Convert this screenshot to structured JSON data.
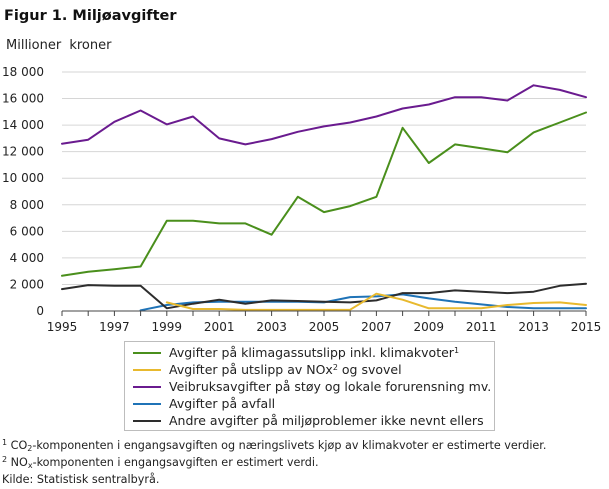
{
  "figure": {
    "title": "Figur 1. Miljøavgifter",
    "y_unit": "Millioner kroner"
  },
  "chart_data": {
    "type": "line",
    "title": "Figur 1. Miljøavgifter",
    "ylabel": "Millioner kroner",
    "xlabel": "",
    "x": [
      1995,
      1996,
      1997,
      1998,
      1999,
      2000,
      2001,
      2002,
      2003,
      2004,
      2005,
      2006,
      2007,
      2008,
      2009,
      2010,
      2011,
      2012,
      2013,
      2014,
      2015
    ],
    "x_ticks": [
      1995,
      1997,
      1999,
      2001,
      2003,
      2005,
      2007,
      2009,
      2011,
      2013,
      2015
    ],
    "xlim": [
      1995,
      2015
    ],
    "ylim": [
      0,
      18000
    ],
    "y_ticks": [
      0,
      2000,
      4000,
      6000,
      8000,
      10000,
      12000,
      14000,
      16000,
      18000
    ],
    "y_tick_labels": [
      "0",
      "2 000",
      "4 000",
      "6 000",
      "8 000",
      "10 000",
      "12 000",
      "14 000",
      "16 000",
      "18 000"
    ],
    "grid": "horizontal",
    "legend_position": "bottom",
    "series": [
      {
        "name": "Avgifter på klimagassutslipp inkl. klimakvoter",
        "legend_text": "Avgifter på klimagassutslipp  inkl. klimakvoter",
        "legend_sup": "1",
        "color": "#4a8f1c",
        "values": [
          2650,
          2950,
          3150,
          3350,
          6800,
          6800,
          6600,
          6600,
          5750,
          8600,
          7450,
          7900,
          8600,
          13800,
          11150,
          12550,
          12250,
          11950,
          13450,
          14200,
          14950
        ]
      },
      {
        "name": "Avgifter på utslipp av NOx og svovel",
        "legend_text": "Avgifter på utslipp  av NOx",
        "legend_sup": "2",
        "legend_text_after": " og svovel",
        "color": "#e8b92e",
        "values": [
          null,
          null,
          null,
          null,
          650,
          150,
          150,
          80,
          80,
          80,
          80,
          100,
          1300,
          850,
          200,
          200,
          200,
          450,
          600,
          650,
          450
        ]
      },
      {
        "name": "Veibruksavgifter på støy og lokale forurensning mv.",
        "legend_text": "Veibruksavgifter på støy og lokale forurensning mv.",
        "color": "#6a1b8f",
        "values": [
          12600,
          12900,
          14250,
          15100,
          14050,
          14650,
          13000,
          12550,
          12950,
          13500,
          13900,
          14200,
          14650,
          15250,
          15550,
          16100,
          16100,
          15850,
          17000,
          16650,
          16100
        ]
      },
      {
        "name": "Avgifter på avfall",
        "legend_text": "Avgifter på avfall",
        "color": "#1f73b7",
        "values": [
          null,
          null,
          null,
          50,
          450,
          650,
          700,
          700,
          700,
          700,
          650,
          1050,
          1100,
          1250,
          950,
          700,
          500,
          300,
          200,
          200,
          200
        ]
      },
      {
        "name": "Andre avgifter på miljøproblemer ikke nevnt ellers",
        "legend_text": "Andre avgifter på miljøproblemer ikke nevnt ellers",
        "color": "#2d2d2d",
        "values": [
          1650,
          1950,
          1900,
          1900,
          200,
          550,
          850,
          550,
          800,
          750,
          700,
          650,
          800,
          1350,
          1350,
          1550,
          1450,
          1350,
          1450,
          1900,
          2050
        ]
      }
    ]
  },
  "footnotes": {
    "note1_sup": "1",
    "note1_a": " CO",
    "note1_sub": "2",
    "note1_b": "-komponenten i engangsavgiften og næringslivets kjøp av klimakvoter er estimerte verdier.",
    "note2_sup": "2",
    "note2_a": " NO",
    "note2_sub": "x",
    "note2_b": "-komponenten  i engangsavgiften er estimert verdi.",
    "source": "Kilde: Statistisk sentralbyrå."
  }
}
